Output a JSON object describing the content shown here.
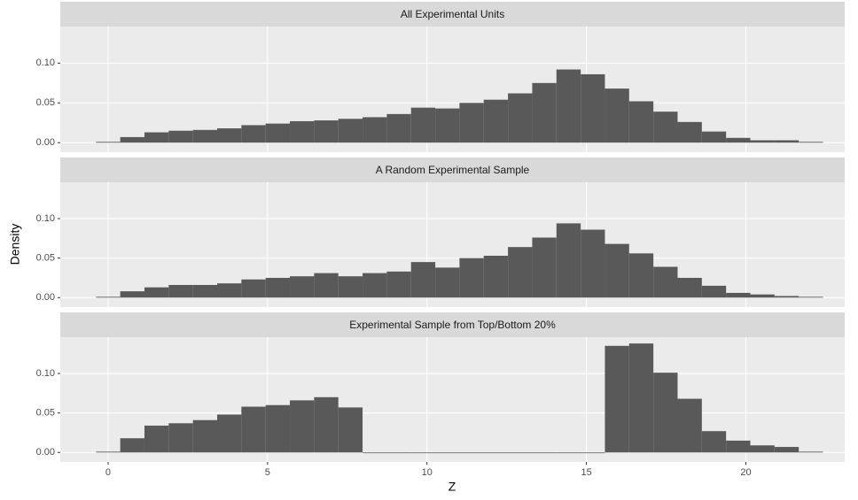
{
  "chart_data": {
    "type": "histogram",
    "x_label": "Z",
    "y_label": "Density",
    "color": "#595959",
    "grid": true,
    "xlim": [
      -1.5,
      23.1
    ],
    "xticks": [
      0,
      5,
      10,
      15,
      20
    ],
    "ylim": [
      -0.012,
      0.146
    ],
    "yticks": [
      {
        "value": 0,
        "label": "0.00"
      },
      {
        "value": 0.05,
        "label": "0.05"
      },
      {
        "value": 0.1,
        "label": "0.10"
      }
    ],
    "bins": [
      -0.38,
      0.38,
      1.14,
      1.9,
      2.66,
      3.42,
      4.18,
      4.94,
      5.7,
      6.46,
      7.22,
      7.98,
      8.74,
      9.5,
      10.26,
      11.02,
      11.78,
      12.54,
      13.3,
      14.06,
      14.82,
      15.58,
      16.34,
      17.1,
      17.86,
      18.62,
      19.38,
      20.14,
      20.9,
      21.66,
      22.42
    ],
    "facets": [
      {
        "title": "All Experimental Units",
        "values": [
          0.001,
          0.007,
          0.013,
          0.015,
          0.016,
          0.018,
          0.022,
          0.024,
          0.027,
          0.028,
          0.03,
          0.032,
          0.036,
          0.044,
          0.043,
          0.05,
          0.054,
          0.062,
          0.075,
          0.092,
          0.086,
          0.068,
          0.052,
          0.039,
          0.026,
          0.014,
          0.006,
          0.003,
          0.003,
          0.001
        ]
      },
      {
        "title": "A Random Experimental Sample",
        "values": [
          0.001,
          0.008,
          0.013,
          0.016,
          0.016,
          0.018,
          0.023,
          0.025,
          0.027,
          0.031,
          0.027,
          0.031,
          0.033,
          0.045,
          0.038,
          0.05,
          0.053,
          0.064,
          0.076,
          0.094,
          0.086,
          0.068,
          0.056,
          0.039,
          0.025,
          0.015,
          0.006,
          0.004,
          0.002,
          0.001
        ]
      },
      {
        "title": "Experimental Sample from Top/Bottom 20%",
        "values": [
          0.001,
          0.018,
          0.034,
          0.037,
          0.041,
          0.048,
          0.058,
          0.06,
          0.066,
          0.07,
          0.057,
          0,
          0,
          0,
          0,
          0,
          0,
          0,
          0,
          0,
          0,
          0.135,
          0.138,
          0.101,
          0.068,
          0.027,
          0.015,
          0.009,
          0.007,
          0.001
        ]
      }
    ]
  }
}
